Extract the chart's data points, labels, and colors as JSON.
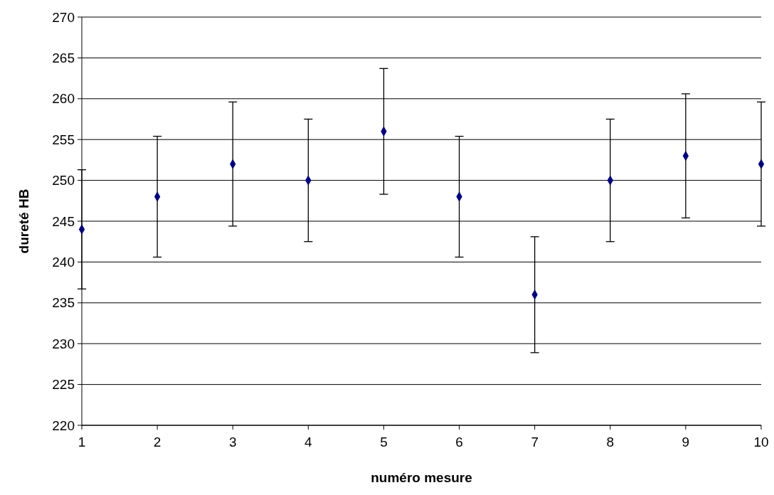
{
  "chart_data": {
    "type": "scatter",
    "xlabel": "numéro mesure",
    "ylabel": "dureté HB",
    "x": [
      1,
      2,
      3,
      4,
      5,
      6,
      7,
      8,
      9,
      10
    ],
    "series": [
      {
        "color": "#000080",
        "values": [
          244,
          248,
          252,
          250,
          256,
          248,
          236,
          250,
          253,
          252
        ],
        "errors": [
          7.3,
          7.4,
          7.6,
          7.5,
          7.7,
          7.4,
          7.1,
          7.5,
          7.6,
          7.6
        ]
      }
    ],
    "xlim": [
      1,
      10
    ],
    "xticks": [
      1,
      2,
      3,
      4,
      5,
      6,
      7,
      8,
      9,
      10
    ],
    "ylim": [
      220,
      270
    ],
    "yticks": [
      220,
      225,
      230,
      235,
      240,
      245,
      250,
      255,
      260,
      265,
      270
    ],
    "grid": "y",
    "marker": "diamond"
  }
}
